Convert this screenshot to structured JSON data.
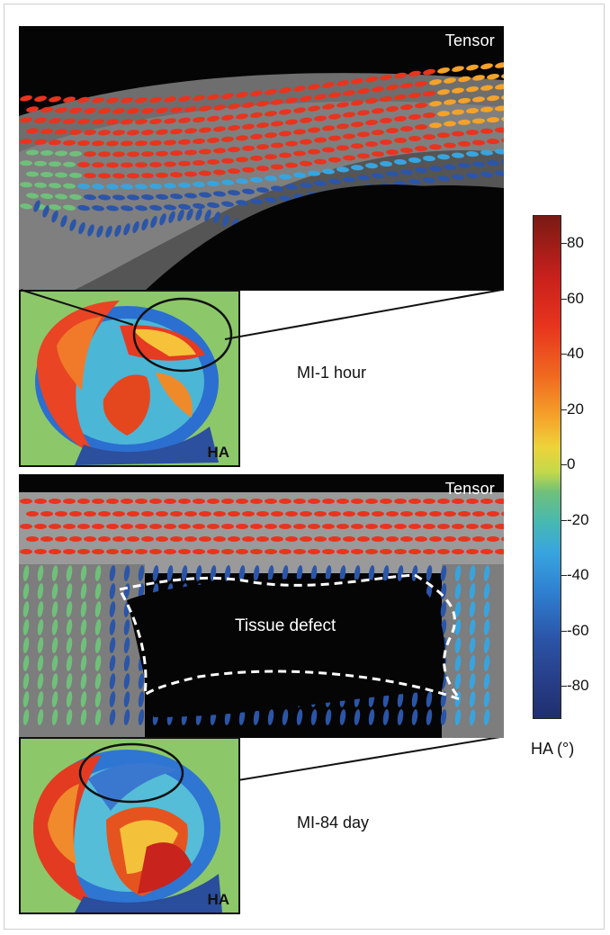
{
  "top_panel": {
    "label": "Tensor",
    "caption": "MI-1 hour",
    "inset_label": "HA"
  },
  "bottom_panel": {
    "label": "Tensor",
    "caption": "MI-84 day",
    "inset_label": "HA",
    "defect_label": "Tissue defect"
  },
  "colorbar": {
    "title": "HA (°)",
    "ticks": [
      "80",
      "60",
      "40",
      "20",
      "0",
      "-20",
      "-40",
      "-60",
      "-80"
    ],
    "colors": [
      "#7a1a14",
      "#e8341e",
      "#f5a22a",
      "#eed33a",
      "#6fc07a",
      "#38a4df",
      "#2b55a8",
      "#1f2f6e"
    ]
  }
}
